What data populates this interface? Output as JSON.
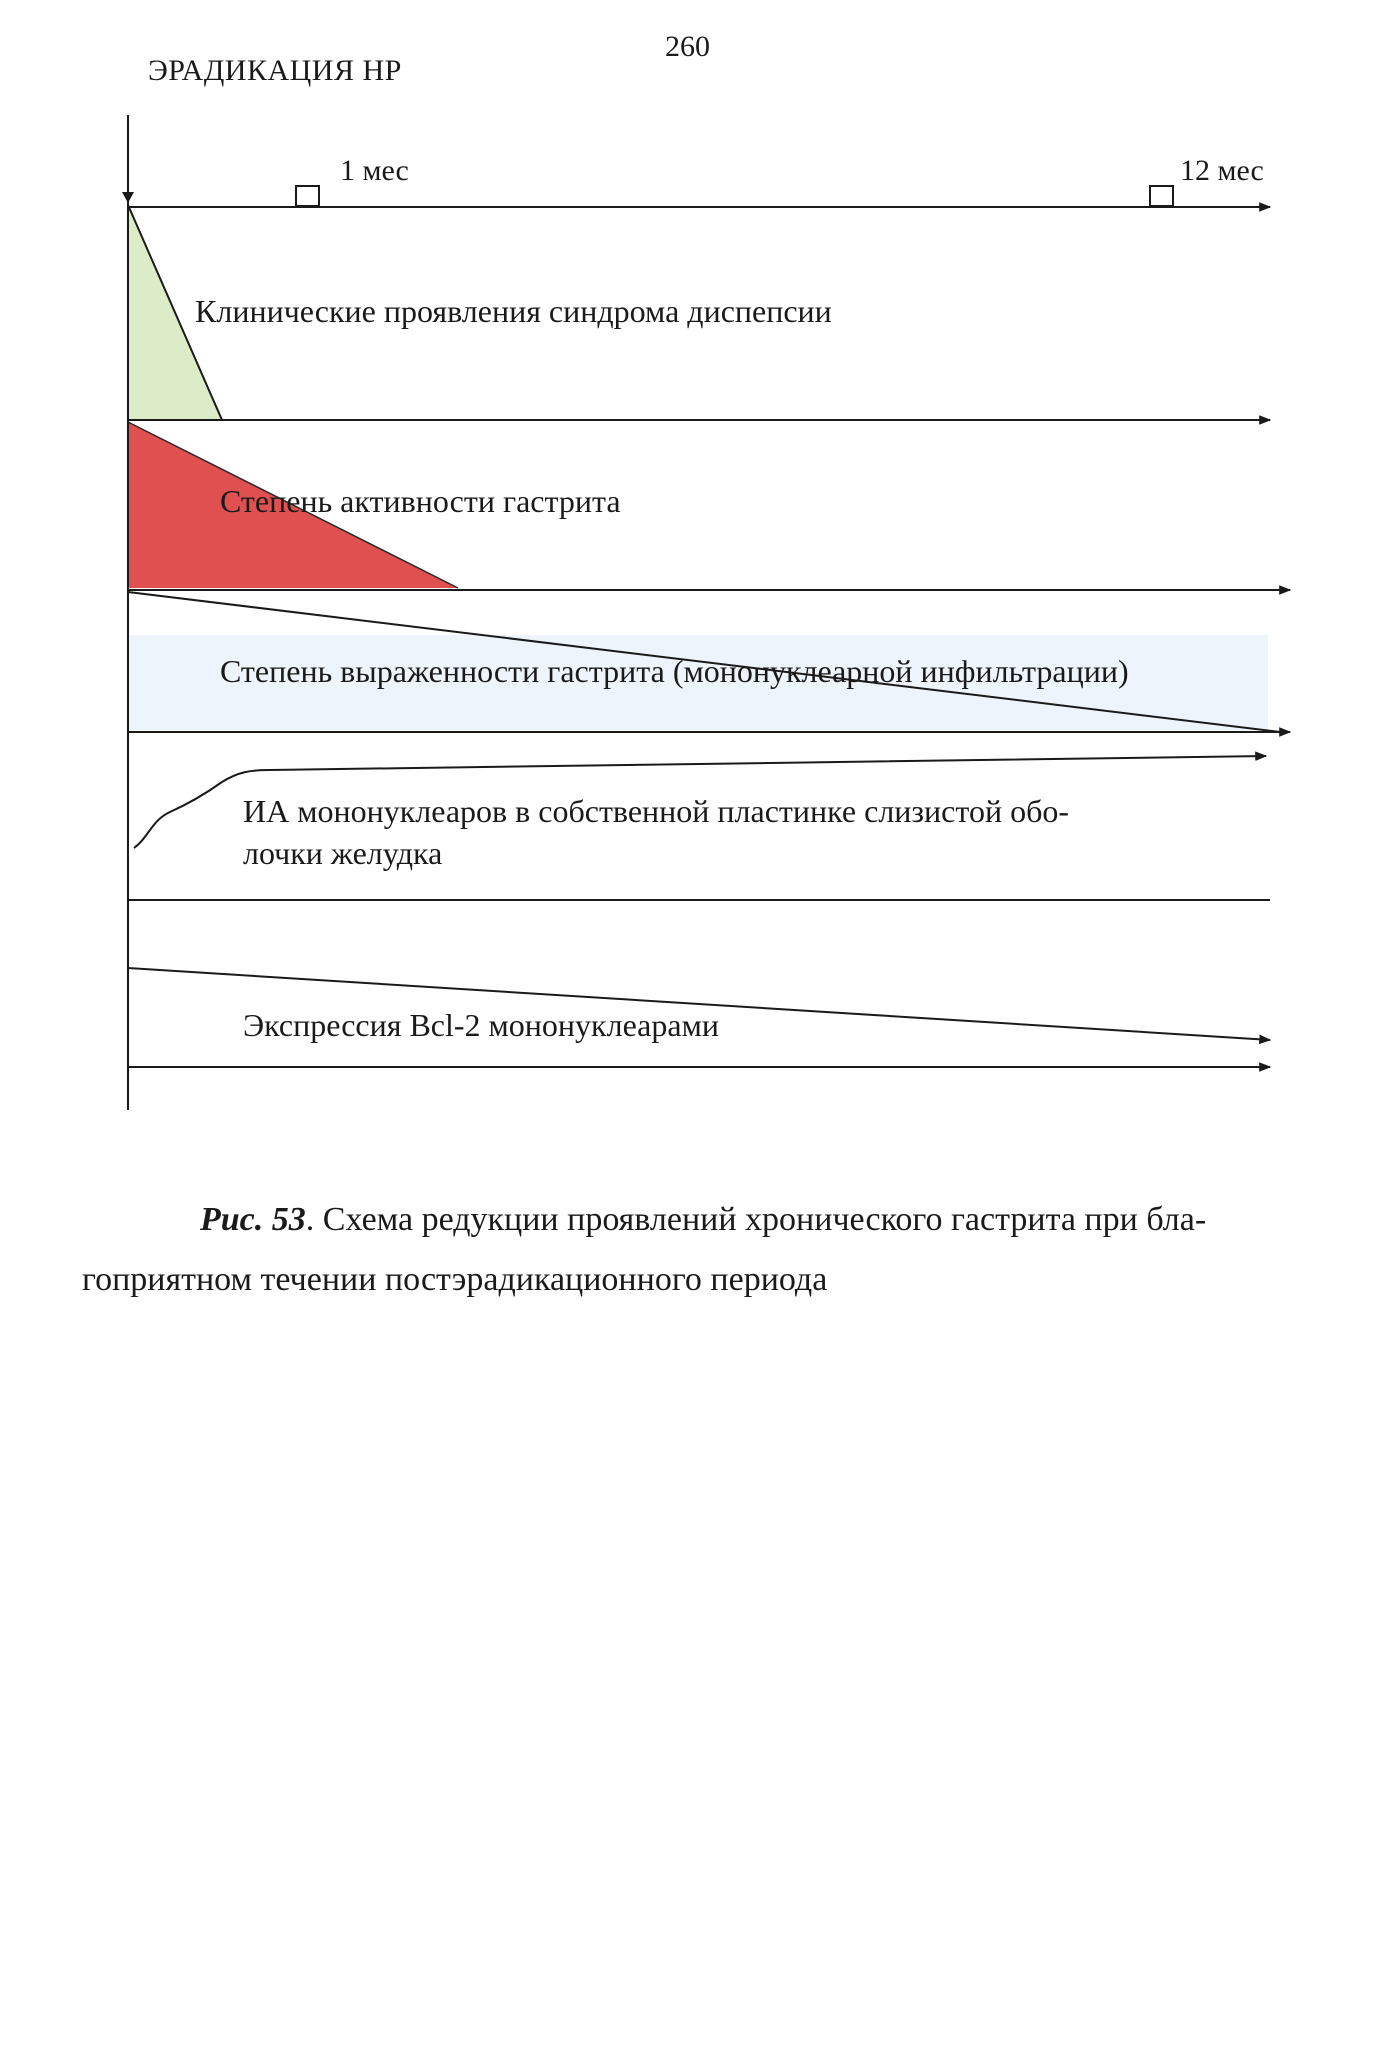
{
  "page": {
    "number": "260",
    "header": "ЭРАДИКАЦИЯ НР"
  },
  "diagram": {
    "time_marks": [
      "1 мес",
      "12 мес"
    ],
    "rows": {
      "dyspepsia": "Клинические проявления синдрома диспепсии",
      "activity": "Степень активности гастрита",
      "severity": "Степень выраженности гастрита (мононуклеарной инфильтрации)",
      "ia_line1": "ИА мононуклеаров в собственной пластинке слизистой обо-",
      "ia_line2": "лочки желудка",
      "bcl2": "Экспрессия Bcl-2 мононуклеарами"
    },
    "colors": {
      "dyspepsia_fill": "#dcebc8",
      "activity_fill": "#e05050",
      "severity_band": "#eef4fb",
      "line": "#1a1a1a"
    }
  },
  "caption": {
    "label": "Рис. 53",
    "text_line1": ". Схема редукции проявлений хронического гастрита при бла-",
    "text_line2": "гоприятном течении постэрадикационного периода"
  }
}
